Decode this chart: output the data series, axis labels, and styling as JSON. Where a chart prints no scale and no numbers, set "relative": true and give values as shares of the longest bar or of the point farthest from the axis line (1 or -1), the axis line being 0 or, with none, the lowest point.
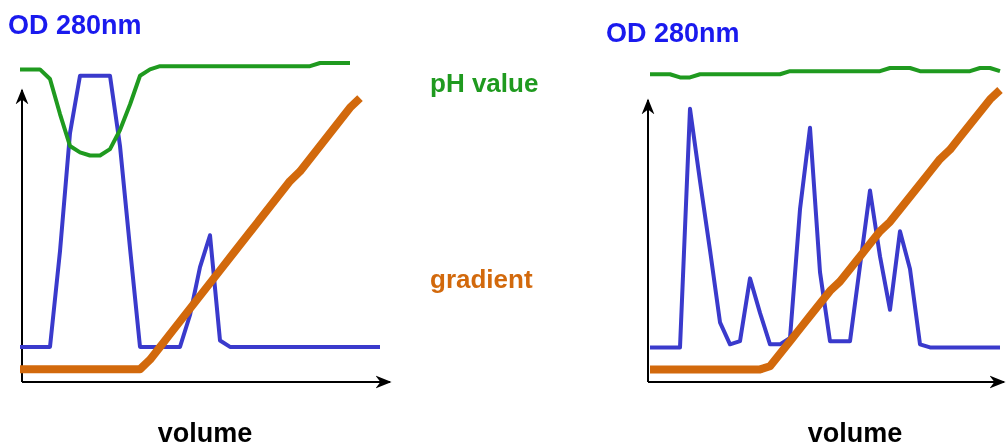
{
  "chart_data": [
    {
      "type": "line",
      "ylabel": "OD 280nm",
      "xlabel": "volume",
      "relative": true,
      "legend": false,
      "grid": false,
      "marker": "none",
      "line_style": "solid",
      "categories": [
        null,
        null,
        null,
        null,
        null,
        null,
        null,
        null,
        null,
        null,
        null,
        null,
        null,
        null,
        null,
        null,
        null,
        null,
        null,
        null,
        null,
        null,
        null,
        null,
        null,
        null,
        null,
        null,
        null,
        null,
        null,
        null,
        null,
        null,
        null,
        null,
        null
      ],
      "series": [
        {
          "color": "#3a3acc",
          "values": [
            0.11,
            0.11,
            0.11,
            0.11,
            0.41,
            0.78,
            0.96,
            0.96,
            0.96,
            0.96,
            0.74,
            0.42,
            0.11,
            0.11,
            0.11,
            0.11,
            0.11,
            0.21,
            0.36,
            0.46,
            0.13,
            0.11,
            0.11,
            0.11,
            0.11,
            0.11,
            0.11,
            0.11,
            0.11,
            0.11,
            0.11,
            0.11,
            0.11,
            0.11,
            0.11,
            0.11,
            0.11
          ]
        },
        {
          "name": "pH value",
          "color": "#1f9a1f",
          "values": [
            0.98,
            0.98,
            0.98,
            0.95,
            0.84,
            0.74,
            0.72,
            0.71,
            0.71,
            0.73,
            0.79,
            0.87,
            0.96,
            0.98,
            0.99,
            0.99,
            0.99,
            0.99,
            0.99,
            0.99,
            0.99,
            0.99,
            0.99,
            0.99,
            0.99,
            0.99,
            0.99,
            0.99,
            0.99,
            0.99,
            1.0,
            1.0,
            1.0,
            1.0,
            null,
            null,
            null
          ]
        },
        {
          "name": "gradient",
          "color": "#d2690c",
          "values": [
            0.04,
            0.04,
            0.04,
            0.04,
            0.04,
            0.04,
            0.04,
            0.04,
            0.04,
            0.04,
            0.04,
            0.04,
            0.04,
            0.07,
            0.11,
            0.15,
            0.19,
            0.23,
            0.27,
            0.31,
            0.35,
            0.39,
            0.43,
            0.47,
            0.51,
            0.55,
            0.59,
            0.63,
            0.66,
            0.7,
            0.74,
            0.78,
            0.82,
            0.86,
            0.89,
            null,
            null
          ]
        }
      ]
    },
    {
      "type": "line",
      "ylabel": "OD 280nm",
      "xlabel": "volume",
      "relative": true,
      "legend": false,
      "grid": false,
      "marker": "none",
      "line_style": "solid",
      "categories": [
        null,
        null,
        null,
        null,
        null,
        null,
        null,
        null,
        null,
        null,
        null,
        null,
        null,
        null,
        null,
        null,
        null,
        null,
        null,
        null,
        null,
        null,
        null,
        null,
        null,
        null,
        null,
        null,
        null,
        null,
        null,
        null,
        null,
        null,
        null,
        null
      ],
      "series": [
        {
          "color": "#3a3acc",
          "values": [
            0.11,
            0.11,
            0.11,
            0.11,
            0.87,
            0.64,
            0.42,
            0.19,
            0.12,
            0.13,
            0.33,
            0.22,
            0.12,
            0.12,
            0.14,
            0.55,
            0.81,
            0.35,
            0.13,
            0.13,
            0.13,
            0.37,
            0.61,
            0.4,
            0.23,
            0.48,
            0.36,
            0.12,
            0.11,
            0.11,
            0.11,
            0.11,
            0.11,
            0.11,
            0.11,
            0.11
          ]
        },
        {
          "color": "#1f9a1f",
          "values": [
            0.98,
            0.98,
            0.98,
            0.97,
            0.97,
            0.98,
            0.98,
            0.98,
            0.98,
            0.98,
            0.98,
            0.98,
            0.98,
            0.98,
            0.99,
            0.99,
            0.99,
            0.99,
            0.99,
            0.99,
            0.99,
            0.99,
            0.99,
            0.99,
            1.0,
            1.0,
            1.0,
            0.99,
            0.99,
            0.99,
            0.99,
            0.99,
            0.99,
            1.0,
            1.0,
            0.99
          ]
        },
        {
          "color": "#d2690c",
          "values": [
            0.04,
            0.04,
            0.04,
            0.04,
            0.04,
            0.04,
            0.04,
            0.04,
            0.04,
            0.04,
            0.04,
            0.04,
            0.05,
            0.09,
            0.13,
            0.17,
            0.21,
            0.25,
            0.29,
            0.32,
            0.36,
            0.4,
            0.44,
            0.48,
            0.51,
            0.55,
            0.59,
            0.63,
            0.67,
            0.71,
            0.74,
            0.78,
            0.82,
            0.86,
            0.9,
            0.93
          ]
        }
      ]
    }
  ]
}
